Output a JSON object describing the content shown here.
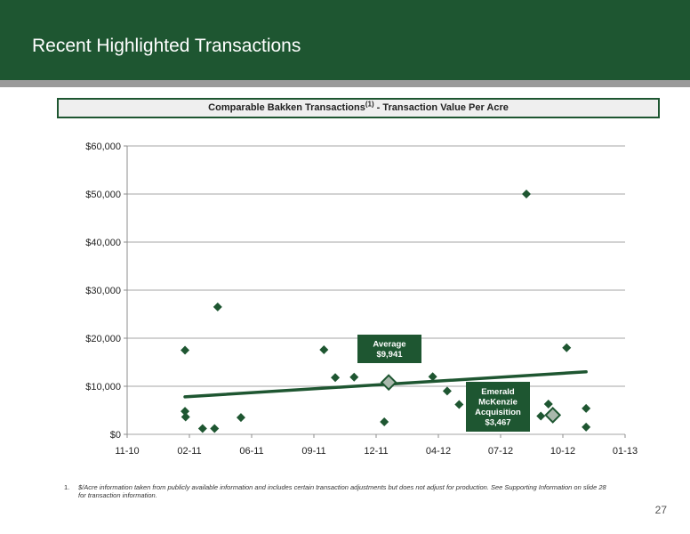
{
  "header": {
    "title": "Recent Highlighted Transactions"
  },
  "subtitle": {
    "main": "Comparable Bakken Transactions",
    "superscript": "(1)",
    "suffix": " - Transaction Value Per Acre"
  },
  "footnote": {
    "number": "1.",
    "text": "$/Acre information taken from publicly available information and includes certain transaction adjustments but does not adjust for production.  See Supporting Information on slide 28 for transaction information."
  },
  "page_number": "27",
  "colors": {
    "brand_green": "#1e5631",
    "highlight_marker": "#a9b8ac",
    "rule_gray": "#9a9a9a"
  },
  "chart_data": {
    "type": "scatter",
    "x_ticks": [
      "11-10",
      "02-11",
      "06-11",
      "09-11",
      "12-11",
      "04-12",
      "07-12",
      "10-12",
      "01-13"
    ],
    "y_ticks": [
      "$60,000",
      "$50,000",
      "$40,000",
      "$30,000",
      "$20,000",
      "$10,000",
      "$0"
    ],
    "xlim": [
      "2010-11-01",
      "2013-01-01"
    ],
    "ylim": [
      0,
      60000
    ],
    "grid": "horizontal",
    "series": [
      {
        "marker": "diamond",
        "points": [
          {
            "x": "2011-02-01",
            "y": 17500
          },
          {
            "x": "2011-02-01",
            "y": 4800
          },
          {
            "x": "2011-02-02",
            "y": 3600
          },
          {
            "x": "2011-03-01",
            "y": 1200
          },
          {
            "x": "2011-03-20",
            "y": 1200
          },
          {
            "x": "2011-03-25",
            "y": 26500
          },
          {
            "x": "2011-05-01",
            "y": 3500
          },
          {
            "x": "2011-09-10",
            "y": 17600
          },
          {
            "x": "2011-09-28",
            "y": 11800
          },
          {
            "x": "2011-10-28",
            "y": 11900
          },
          {
            "x": "2011-12-15",
            "y": 2600
          },
          {
            "x": "2012-03-01",
            "y": 12000
          },
          {
            "x": "2012-03-24",
            "y": 9000
          },
          {
            "x": "2012-04-12",
            "y": 6200
          },
          {
            "x": "2012-07-28",
            "y": 50000
          },
          {
            "x": "2012-08-20",
            "y": 3800
          },
          {
            "x": "2012-09-01",
            "y": 6300
          },
          {
            "x": "2012-09-30",
            "y": 18000
          },
          {
            "x": "2012-10-31",
            "y": 5400
          },
          {
            "x": "2012-10-31",
            "y": 1500
          }
        ]
      }
    ],
    "highlights": [
      {
        "label_lines": [
          "Average",
          "$9,941"
        ],
        "x": "2011-12-22",
        "y": 10800
      },
      {
        "label_lines": [
          "Emerald",
          "McKenzie",
          "Acquisition",
          "$3,467"
        ],
        "x": "2012-09-08",
        "y": 4000
      }
    ],
    "trendline": {
      "from": {
        "x": "2011-02-01",
        "y": 7800
      },
      "to": {
        "x": "2012-10-31",
        "y": 13000
      }
    }
  }
}
